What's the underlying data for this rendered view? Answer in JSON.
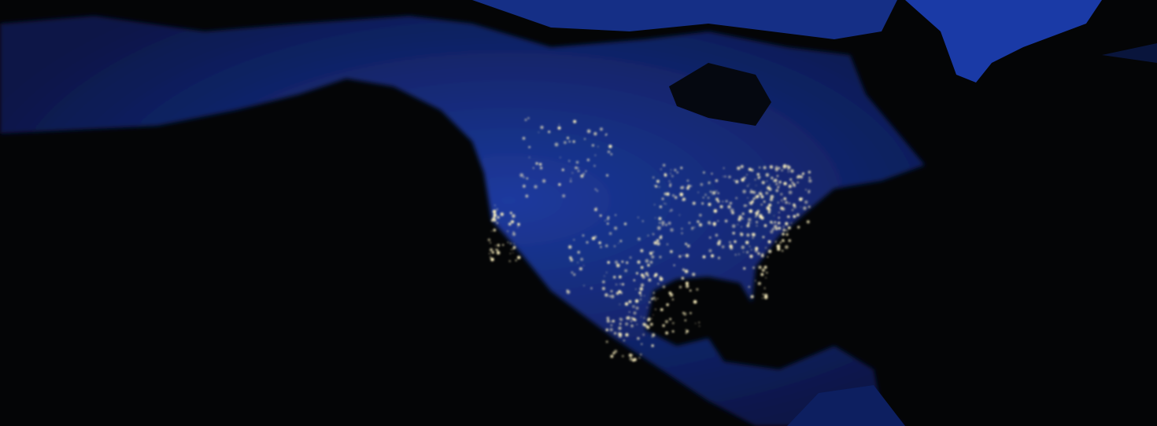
{
  "scene": {
    "subject": "earth-at-night-north-america",
    "colors": {
      "ocean": "#040506",
      "land": "#0c1f5c",
      "land_bright": "#1b3aa8",
      "greenland": "#1a3aa6",
      "city_lights": "#fff3c0"
    }
  }
}
